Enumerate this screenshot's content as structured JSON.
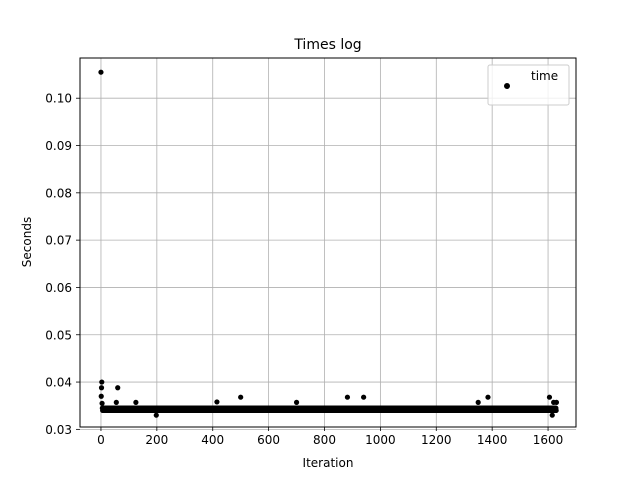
{
  "chart_data": {
    "type": "scatter",
    "title": "Times log",
    "xlabel": "Iteration",
    "ylabel": "Seconds",
    "xlim": [
      -75,
      1700
    ],
    "ylim": [
      0.0305,
      0.1085
    ],
    "xticks": [
      0,
      200,
      400,
      600,
      800,
      1000,
      1200,
      1400,
      1600
    ],
    "xtick_labels": [
      "0",
      "200",
      "400",
      "600",
      "800",
      "1000",
      "1200",
      "1400",
      "1600"
    ],
    "yticks": [
      0.03,
      0.04,
      0.05,
      0.06,
      0.07,
      0.08,
      0.09,
      0.1
    ],
    "ytick_labels": [
      "0.03",
      "0.04",
      "0.05",
      "0.06",
      "0.07",
      "0.08",
      "0.09",
      "0.10"
    ],
    "grid": true,
    "legend_position": "top-right",
    "series": [
      {
        "name": "time",
        "color": "#000000",
        "x_count": 1630,
        "baseline": {
          "from": 6,
          "to": 1629,
          "values": [
            0.034,
            0.0345
          ]
        },
        "points": [
          [
            0,
            0.1055
          ],
          [
            1,
            0.037
          ],
          [
            2,
            0.0388
          ],
          [
            3,
            0.04
          ],
          [
            4,
            0.0355
          ],
          [
            5,
            0.0345
          ],
          [
            55,
            0.0357
          ],
          [
            60,
            0.0388
          ],
          [
            125,
            0.0357
          ],
          [
            198,
            0.033
          ],
          [
            415,
            0.0358
          ],
          [
            500,
            0.0368
          ],
          [
            700,
            0.0357
          ],
          [
            882,
            0.0368
          ],
          [
            940,
            0.0368
          ],
          [
            1350,
            0.0357
          ],
          [
            1385,
            0.0368
          ],
          [
            1605,
            0.0368
          ],
          [
            1615,
            0.033
          ],
          [
            1620,
            0.0357
          ],
          [
            1630,
            0.0357
          ]
        ]
      }
    ]
  }
}
